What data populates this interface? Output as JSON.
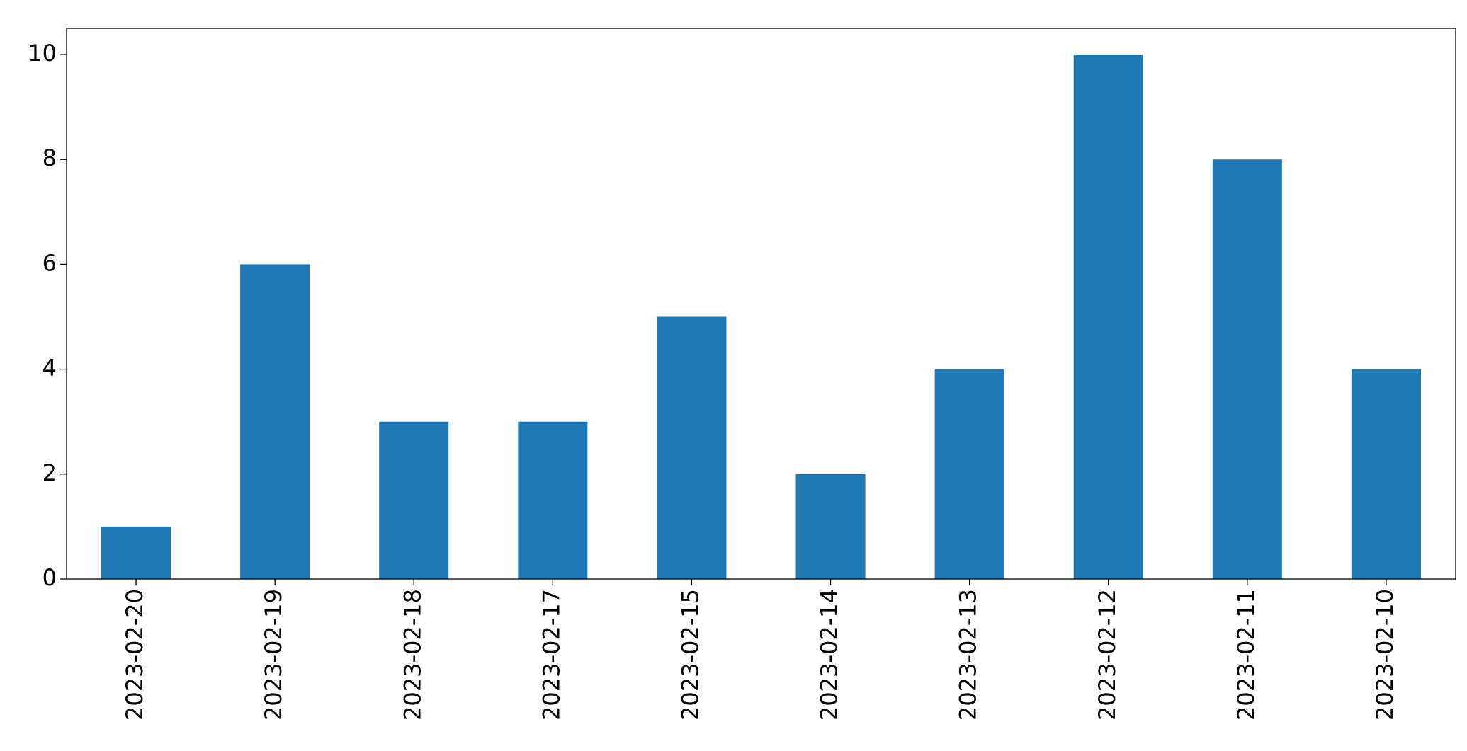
{
  "chart_data": {
    "type": "bar",
    "categories": [
      "2023-02-20",
      "2023-02-19",
      "2023-02-18",
      "2023-02-17",
      "2023-02-15",
      "2023-02-14",
      "2023-02-13",
      "2023-02-12",
      "2023-02-11",
      "2023-02-10"
    ],
    "values": [
      1,
      6,
      3,
      3,
      5,
      2,
      4,
      10,
      8,
      4
    ],
    "color": "#1f77b4",
    "ylim": [
      0,
      10.5
    ],
    "yticks": [
      0,
      2,
      4,
      6,
      8,
      10
    ],
    "grid": false
  }
}
